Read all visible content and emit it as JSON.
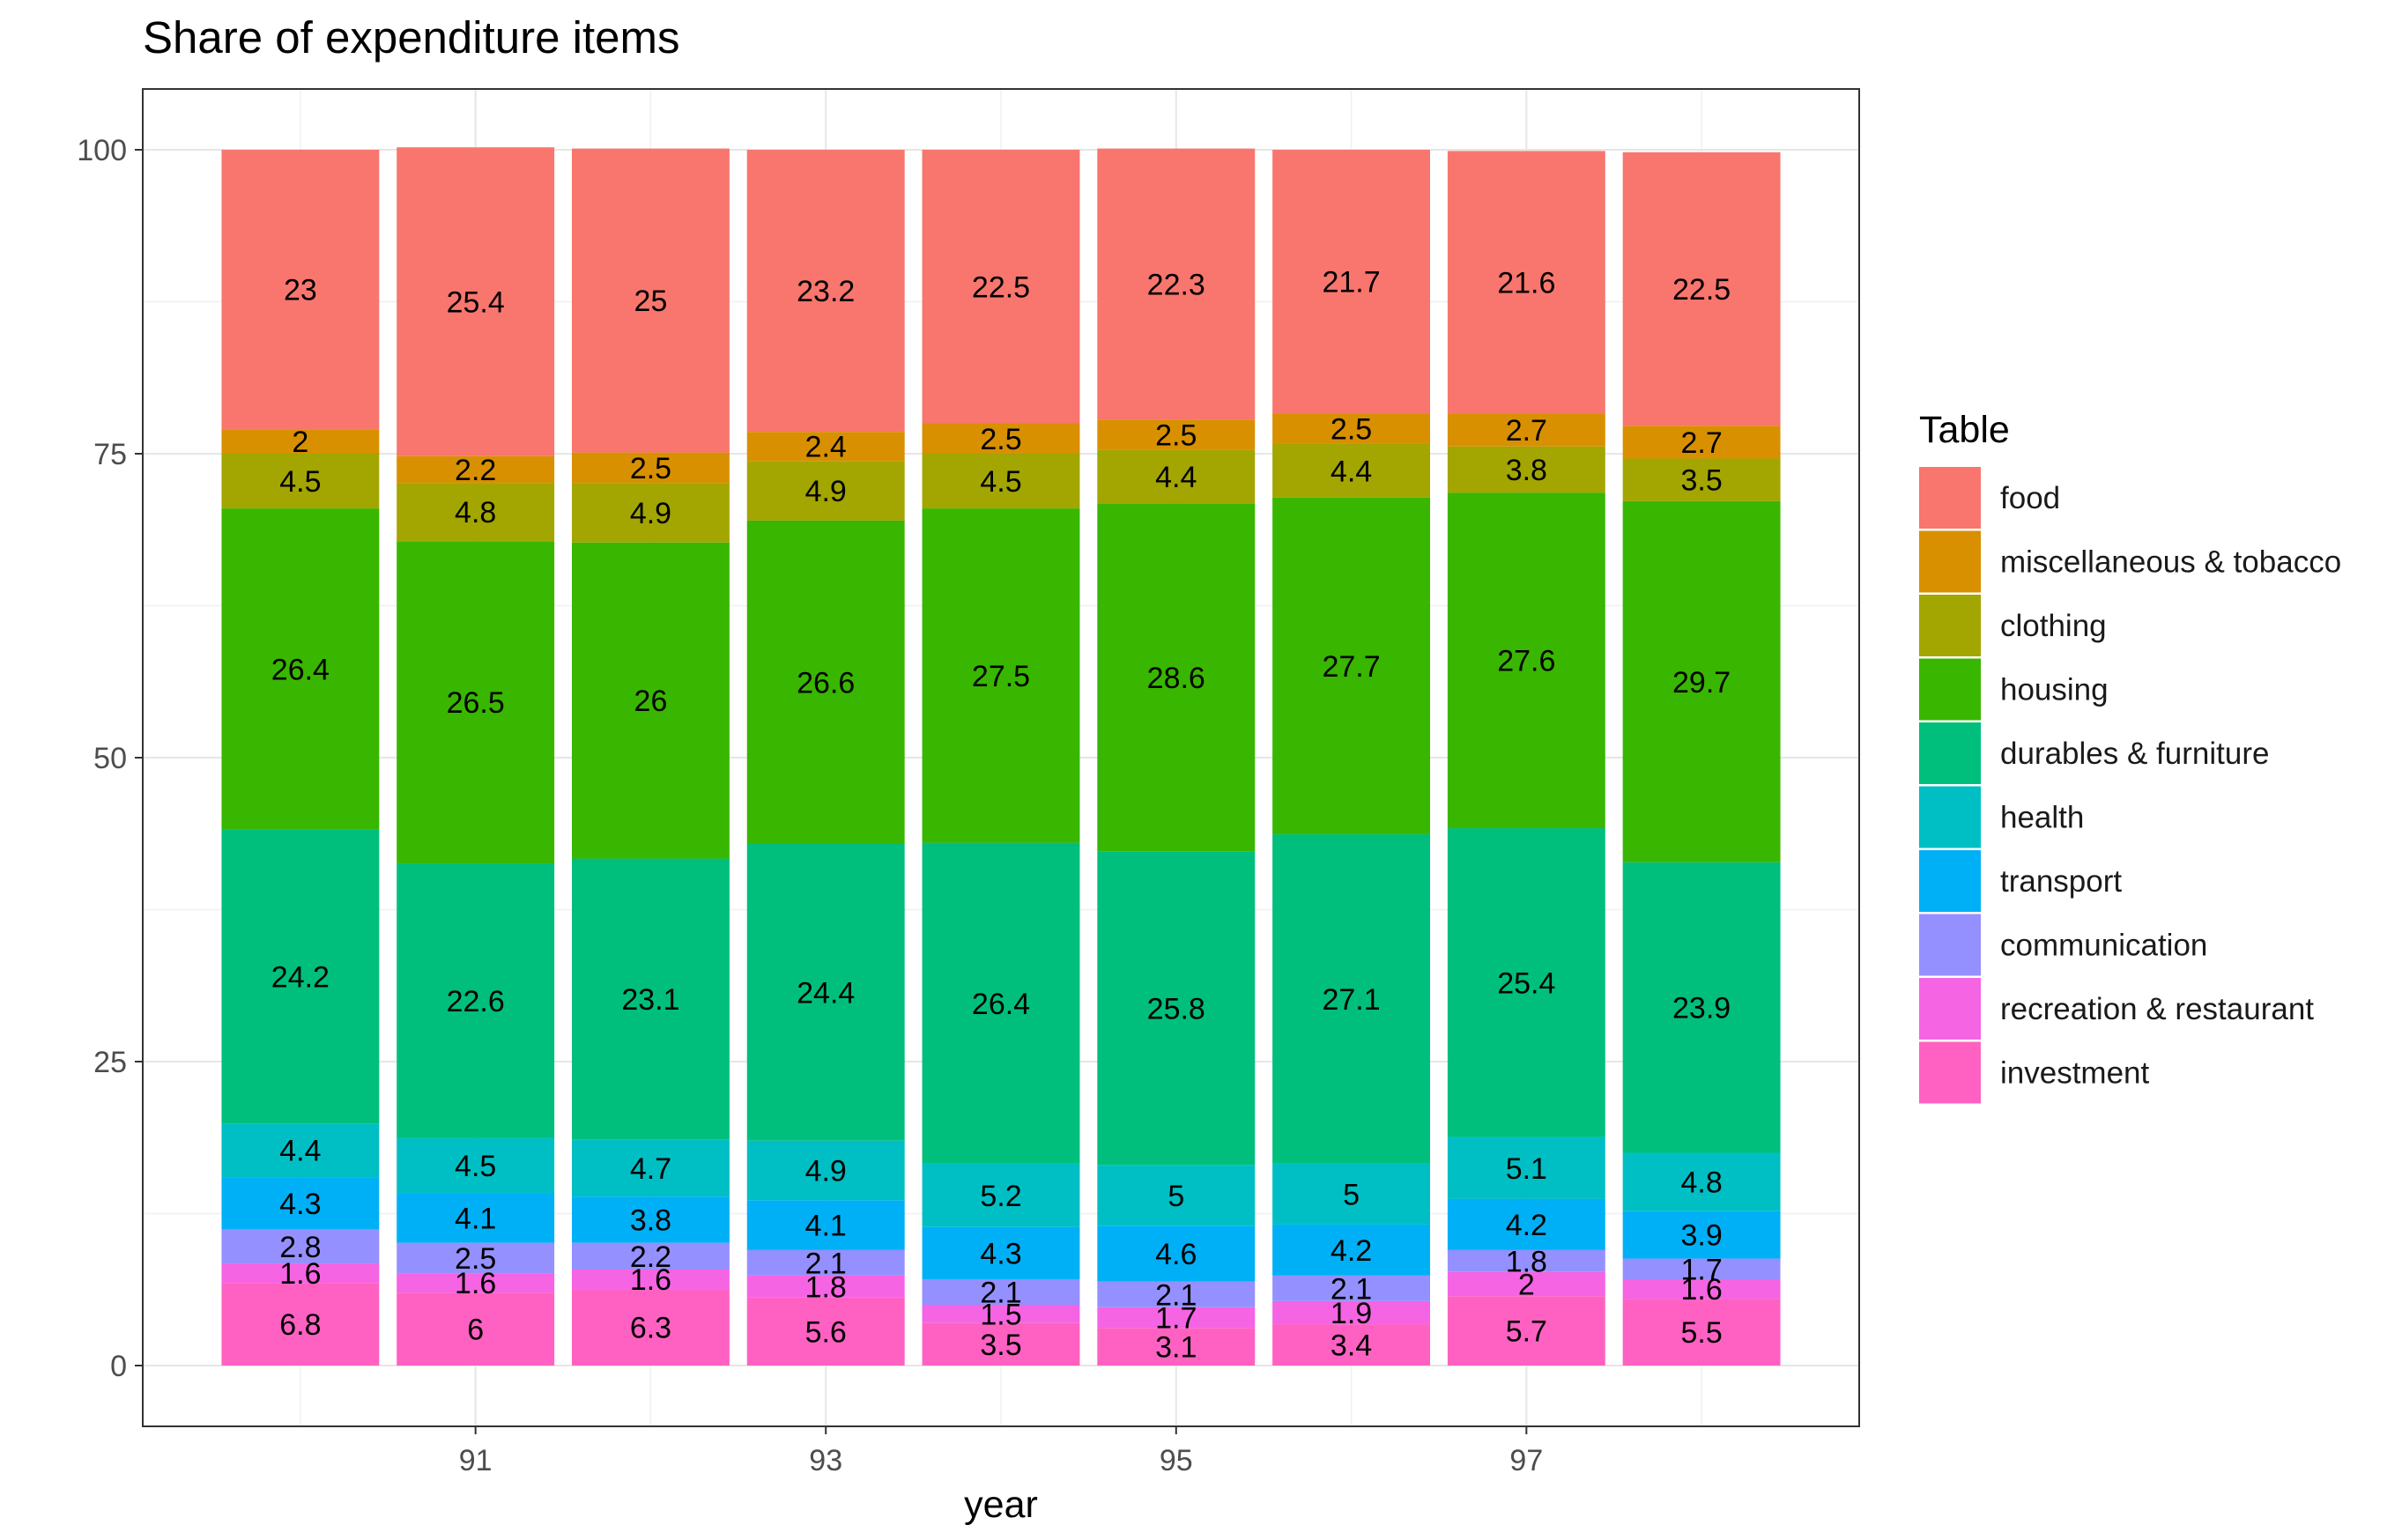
{
  "chart_data": {
    "type": "bar",
    "stacked": true,
    "title": "Share of expenditure items",
    "xlabel": "year",
    "ylabel": "",
    "ylim": [
      -5,
      105
    ],
    "yticks": [
      0,
      25,
      50,
      75,
      100
    ],
    "xlim": [
      89.1,
      98.9
    ],
    "xticks": [
      91,
      93,
      95,
      97
    ],
    "x": [
      90,
      91,
      92,
      93,
      94,
      95,
      96,
      97,
      98
    ],
    "grid": true,
    "legend": {
      "title": "Table",
      "position": "right"
    },
    "series": [
      {
        "name": "investment",
        "color": "#FF61C3",
        "values": [
          6.8,
          6,
          6.3,
          5.6,
          3.5,
          3.1,
          3.4,
          5.7,
          5.5
        ]
      },
      {
        "name": "recreation & restaurant",
        "color": "#F564E3",
        "values": [
          1.6,
          1.6,
          1.6,
          1.8,
          1.5,
          1.7,
          1.9,
          2,
          1.6
        ]
      },
      {
        "name": "communication",
        "color": "#9590FF",
        "values": [
          2.8,
          2.5,
          2.2,
          2.1,
          2.1,
          2.1,
          2.1,
          1.8,
          1.7
        ]
      },
      {
        "name": "transport",
        "color": "#00B0F6",
        "values": [
          4.3,
          4.1,
          3.8,
          4.1,
          4.3,
          4.6,
          4.2,
          4.2,
          3.9
        ]
      },
      {
        "name": "health",
        "color": "#00BFC4",
        "values": [
          4.4,
          4.5,
          4.7,
          4.9,
          5.2,
          5,
          5,
          5.1,
          4.8
        ]
      },
      {
        "name": "durables & furniture",
        "color": "#00BF7D",
        "values": [
          24.2,
          22.6,
          23.1,
          24.4,
          26.4,
          25.8,
          27.1,
          25.4,
          23.9
        ]
      },
      {
        "name": "housing",
        "color": "#39B600",
        "values": [
          26.4,
          26.5,
          26,
          26.6,
          27.5,
          28.6,
          27.7,
          27.6,
          29.7
        ]
      },
      {
        "name": "clothing",
        "color": "#A3A500",
        "values": [
          4.5,
          4.8,
          4.9,
          4.9,
          4.5,
          4.4,
          4.4,
          3.8,
          3.5
        ]
      },
      {
        "name": "miscellaneous & tobacco",
        "color": "#D89000",
        "values": [
          2,
          2.2,
          2.5,
          2.4,
          2.5,
          2.5,
          2.5,
          2.7,
          2.7
        ]
      },
      {
        "name": "food",
        "color": "#F8766D",
        "values": [
          23,
          25.4,
          25,
          23.2,
          22.5,
          22.3,
          21.7,
          21.6,
          22.5
        ]
      }
    ],
    "legend_order": [
      "food",
      "miscellaneous & tobacco",
      "clothing",
      "housing",
      "durables & furniture",
      "health",
      "transport",
      "communication",
      "recreation & restaurant",
      "investment"
    ]
  }
}
